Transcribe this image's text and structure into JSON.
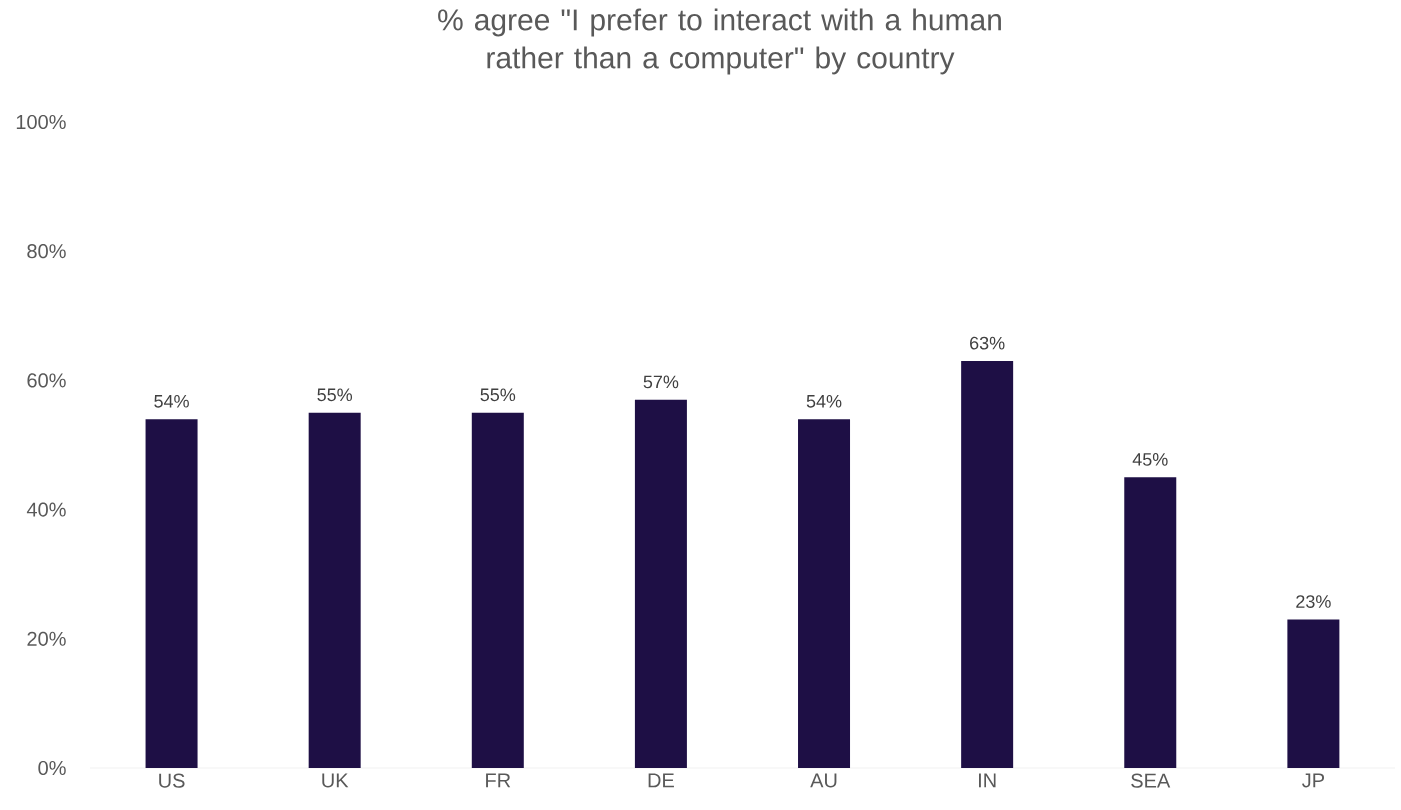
{
  "chart_data": {
    "type": "bar",
    "title": "% agree \"I prefer to interact with a human rather than a computer\" by country",
    "categories": [
      "US",
      "UK",
      "FR",
      "DE",
      "AU",
      "IN",
      "SEA",
      "JP"
    ],
    "values": [
      54,
      55,
      55,
      57,
      54,
      63,
      45,
      23
    ],
    "value_labels": [
      "54%",
      "55%",
      "55%",
      "57%",
      "54%",
      "63%",
      "45%",
      "23%"
    ],
    "color": "#1e0f45",
    "ylim": [
      0,
      100
    ],
    "yticks": [
      {
        "value": 0,
        "label": "0%"
      },
      {
        "value": 20,
        "label": "20%"
      },
      {
        "value": 40,
        "label": "40%"
      },
      {
        "value": 60,
        "label": "60%"
      },
      {
        "value": 80,
        "label": "80%"
      },
      {
        "value": 100,
        "label": "100%"
      }
    ],
    "grid": false
  }
}
